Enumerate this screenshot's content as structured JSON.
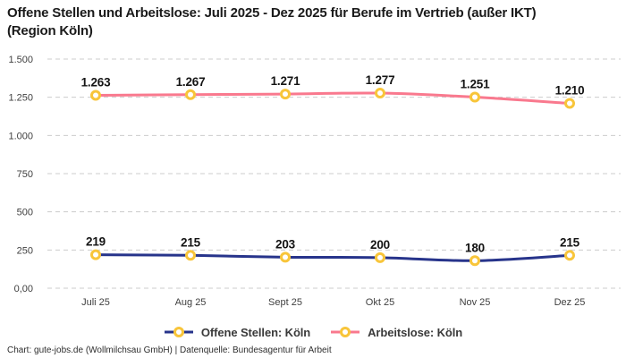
{
  "title": "Offene Stellen und Arbeitslose: Juli 2025 - Dez 2025 für Berufe im Vertrieb (außer IKT) (Region Köln)",
  "footer": "Chart: gute-jobs.de (Wollmilchsau GmbH) | Datenquelle: Bundesagentur für Arbeit",
  "colors": {
    "marker": "#f8c53a",
    "grid": "#cccccc",
    "background": "#ffffff"
  },
  "chart_data": {
    "type": "line",
    "title": "Offene Stellen und Arbeitslose: Juli 2025 - Dez 2025 für Berufe im Vertrieb (außer IKT) (Region Köln)",
    "categories": [
      "Juli 25",
      "Aug 25",
      "Sept 25",
      "Okt 25",
      "Nov 25",
      "Dez 25"
    ],
    "series": [
      {
        "name": "Offene Stellen: Köln",
        "color": "#27348b",
        "values": [
          219,
          215,
          203,
          200,
          180,
          215
        ],
        "labels": [
          "219",
          "215",
          "203",
          "200",
          "180",
          "215"
        ]
      },
      {
        "name": "Arbeitslose: Köln",
        "color": "#f9798e",
        "values": [
          1263,
          1267,
          1271,
          1277,
          1251,
          1210
        ],
        "labels": [
          "1.263",
          "1.267",
          "1.271",
          "1.277",
          "1.251",
          "1.210"
        ]
      }
    ],
    "xlabel": "",
    "ylabel": "",
    "ylim": [
      0,
      1500
    ],
    "yticks": [
      {
        "value": 0,
        "label": "0,00"
      },
      {
        "value": 250,
        "label": "250"
      },
      {
        "value": 500,
        "label": "500"
      },
      {
        "value": 750,
        "label": "750"
      },
      {
        "value": 1000,
        "label": "1.000"
      },
      {
        "value": 1250,
        "label": "1.250"
      },
      {
        "value": 1500,
        "label": "1.500"
      }
    ],
    "grid": "horizontal-dashed",
    "legend_position": "bottom",
    "marker_style": "open-circle-yellow"
  }
}
